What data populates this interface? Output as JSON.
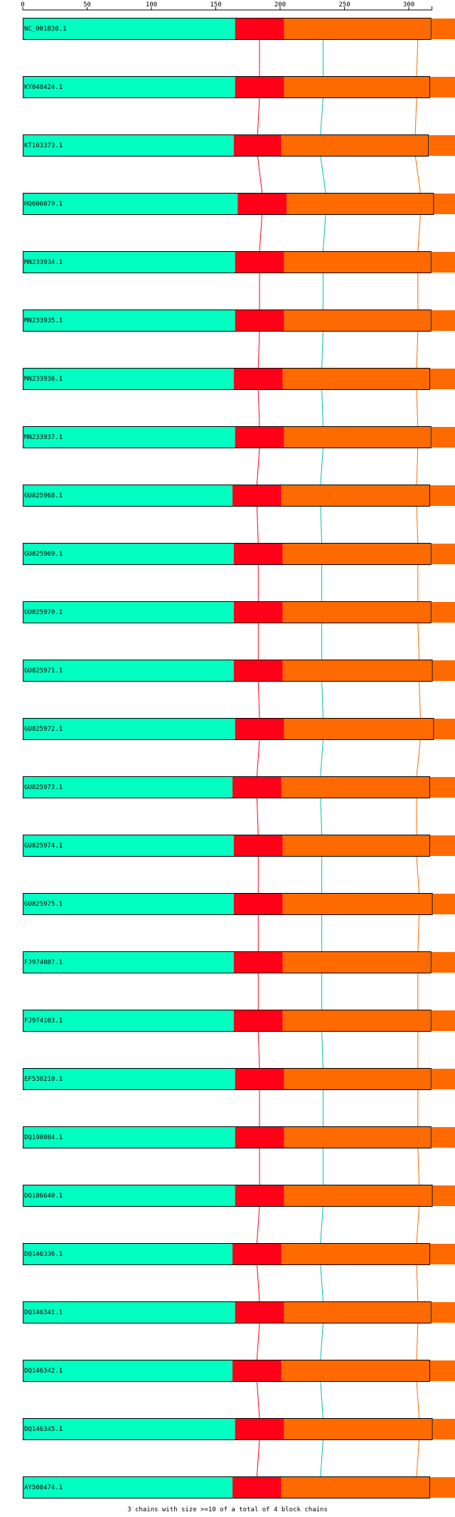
{
  "ruler": {
    "ticks": [
      0,
      50,
      100,
      150,
      200,
      250,
      300
    ],
    "max": 318
  },
  "colors": {
    "block1": "#00ffc0",
    "block2": "#ff0018",
    "block3": "#ff6a00",
    "connector2": "#ff0018",
    "connector3": "#00c0b0",
    "connector4": "#ff6a00",
    "outline": "#000000"
  },
  "sequences": [
    {
      "name": "NC_001830.1",
      "b2": 165,
      "b3": 203,
      "end": 317
    },
    {
      "name": "KY048424.1",
      "b2": 165,
      "b3": 203,
      "end": 316
    },
    {
      "name": "KT163373.1",
      "b2": 164,
      "b3": 201,
      "end": 315
    },
    {
      "name": "HQ606079.1",
      "b2": 167,
      "b3": 205,
      "end": 319
    },
    {
      "name": "MN233934.1",
      "b2": 165,
      "b3": 203,
      "end": 317
    },
    {
      "name": "MN233935.1",
      "b2": 165,
      "b3": 203,
      "end": 317
    },
    {
      "name": "MN233936.1",
      "b2": 164,
      "b3": 202,
      "end": 316
    },
    {
      "name": "MN233937.1",
      "b2": 165,
      "b3": 203,
      "end": 317
    },
    {
      "name": "GU825968.1",
      "b2": 163,
      "b3": 201,
      "end": 316
    },
    {
      "name": "GU825969.1",
      "b2": 164,
      "b3": 202,
      "end": 317
    },
    {
      "name": "GU825970.1",
      "b2": 164,
      "b3": 202,
      "end": 317
    },
    {
      "name": "GU825971.1",
      "b2": 164,
      "b3": 202,
      "end": 318
    },
    {
      "name": "GU825972.1",
      "b2": 165,
      "b3": 203,
      "end": 319
    },
    {
      "name": "GU825973.1",
      "b2": 163,
      "b3": 201,
      "end": 316
    },
    {
      "name": "GU825974.1",
      "b2": 164,
      "b3": 202,
      "end": 316
    },
    {
      "name": "GU825975.1",
      "b2": 164,
      "b3": 202,
      "end": 318
    },
    {
      "name": "FJ974087.1",
      "b2": 164,
      "b3": 202,
      "end": 317
    },
    {
      "name": "FJ974103.1",
      "b2": 164,
      "b3": 202,
      "end": 317
    },
    {
      "name": "EF530210.1",
      "b2": 165,
      "b3": 203,
      "end": 317
    },
    {
      "name": "DQ198084.1",
      "b2": 165,
      "b3": 203,
      "end": 317
    },
    {
      "name": "DQ186640.1",
      "b2": 165,
      "b3": 203,
      "end": 318
    },
    {
      "name": "DQ146336.1",
      "b2": 163,
      "b3": 201,
      "end": 316
    },
    {
      "name": "DQ146341.1",
      "b2": 165,
      "b3": 203,
      "end": 317
    },
    {
      "name": "DQ146342.1",
      "b2": 163,
      "b3": 201,
      "end": 316
    },
    {
      "name": "DQ146345.1",
      "b2": 165,
      "b3": 203,
      "end": 318
    },
    {
      "name": "AY508474.1",
      "b2": 163,
      "b3": 201,
      "end": 316
    }
  ],
  "footer": "3 chains with size >=10 of a total of 4 block chains"
}
